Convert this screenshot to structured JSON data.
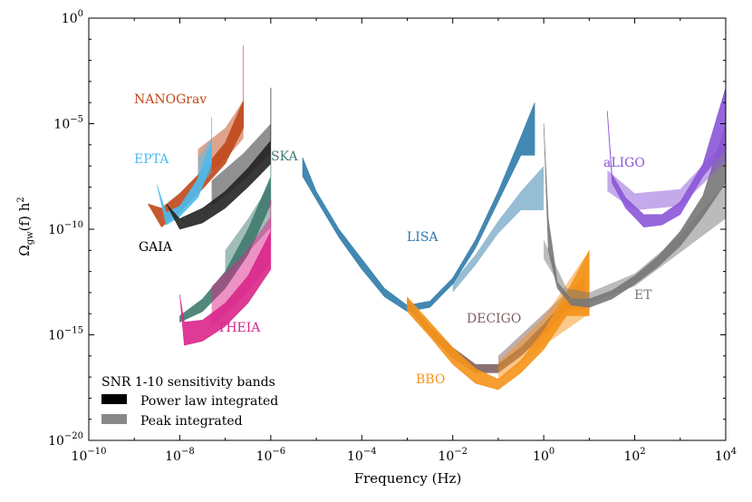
{
  "chart_data": {
    "type": "area",
    "title": "",
    "xlabel": "Frequency (Hz)",
    "ylabel": "Ω_gw(f) h²",
    "ylabel_parts": {
      "omega": "Ω",
      "sub": "gw",
      "mid": "(f) h",
      "sup": "2"
    },
    "xscale": "log",
    "yscale": "log",
    "xlim_exp": [
      -10,
      4
    ],
    "ylim_exp": [
      -20,
      0
    ],
    "xticks": [
      {
        "base": "10",
        "exp": "−10",
        "v": -10
      },
      {
        "base": "10",
        "exp": "−8",
        "v": -8
      },
      {
        "base": "10",
        "exp": "−6",
        "v": -6
      },
      {
        "base": "10",
        "exp": "−4",
        "v": -4
      },
      {
        "base": "10",
        "exp": "−2",
        "v": -2
      },
      {
        "base": "10",
        "exp": "0",
        "v": 0
      },
      {
        "base": "10",
        "exp": "2",
        "v": 2
      },
      {
        "base": "10",
        "exp": "4",
        "v": 4
      }
    ],
    "yticks": [
      {
        "base": "10",
        "exp": "0",
        "v": 0
      },
      {
        "base": "10",
        "exp": "−5",
        "v": -5
      },
      {
        "base": "10",
        "exp": "−10",
        "v": -10
      },
      {
        "base": "10",
        "exp": "−15",
        "v": -15
      },
      {
        "base": "10",
        "exp": "−20",
        "v": -20
      }
    ],
    "legend": {
      "title": "SNR 1-10 sensitivity bands",
      "position": "bottom-left",
      "entries": [
        {
          "label": "Power law integrated",
          "color": "#000000"
        },
        {
          "label": "Peak integrated",
          "color": "#888888"
        }
      ]
    },
    "detectors": [
      {
        "name": "NANOGrav",
        "color": "#c0471a",
        "pli": [
          [
            -8.7,
            -8.8,
            -8.8
          ],
          [
            -8.4,
            -9.0,
            -9.9
          ],
          [
            -8.0,
            -8.3,
            -9.2
          ],
          [
            -7.5,
            -7.2,
            -8.1
          ],
          [
            -7.0,
            -5.9,
            -6.9
          ],
          [
            -6.6,
            -3.9,
            -5.2
          ],
          [
            -6.6,
            -1.3,
            -5.2
          ]
        ],
        "peak": [
          [
            -7.6,
            -6.2,
            -7.8
          ],
          [
            -7.0,
            -5.2,
            -6.7
          ],
          [
            -6.6,
            -3.9,
            -5.7
          ]
        ]
      },
      {
        "name": "EPTA",
        "color": "#4dbbee",
        "pli": [
          [
            -8.5,
            -7.9,
            -7.9
          ],
          [
            -8.3,
            -9.2,
            -9.8
          ],
          [
            -8.0,
            -8.9,
            -9.4
          ],
          [
            -7.6,
            -7.6,
            -8.5
          ],
          [
            -7.3,
            -5.8,
            -6.9
          ],
          [
            -7.3,
            -4.7,
            -6.9
          ]
        ],
        "peak": [
          [
            -7.6,
            -6.6,
            -8.1
          ],
          [
            -7.3,
            -5.7,
            -7.3
          ]
        ]
      },
      {
        "name": "GAIA",
        "color": "#222222",
        "pli": [
          [
            -8.3,
            -8.8,
            -8.8
          ],
          [
            -8.0,
            -9.5,
            -10.0
          ],
          [
            -7.5,
            -9.0,
            -9.7
          ],
          [
            -7.0,
            -8.2,
            -9.0
          ],
          [
            -6.5,
            -7.1,
            -8.0
          ],
          [
            -6.0,
            -5.8,
            -6.9
          ],
          [
            -6.0,
            -3.3,
            -6.9
          ]
        ],
        "peak": [
          [
            -7.3,
            -7.7,
            -8.9
          ],
          [
            -6.6,
            -6.4,
            -7.7
          ],
          [
            -6.0,
            -5.0,
            -6.4
          ]
        ]
      },
      {
        "name": "SKA",
        "color": "#3f7b6e",
        "pli": [
          [
            -8.0,
            -14.1,
            -14.4
          ],
          [
            -7.5,
            -13.3,
            -13.9
          ],
          [
            -7.0,
            -12.0,
            -12.8
          ],
          [
            -6.5,
            -10.0,
            -11.2
          ],
          [
            -6.0,
            -7.5,
            -8.8
          ],
          [
            -6.0,
            -6.9,
            -8.8
          ]
        ],
        "peak": [
          [
            -7.0,
            -11.0,
            -12.6
          ],
          [
            -6.5,
            -9.5,
            -11.1
          ],
          [
            -6.0,
            -7.8,
            -9.9
          ]
        ]
      },
      {
        "name": "THEIA",
        "color": "#d9268a",
        "pli": [
          [
            -8.0,
            -13.1,
            -13.1
          ],
          [
            -7.9,
            -14.4,
            -15.5
          ],
          [
            -7.5,
            -14.3,
            -15.3
          ],
          [
            -7.0,
            -13.5,
            -14.6
          ],
          [
            -6.5,
            -12.2,
            -13.5
          ],
          [
            -6.0,
            -10.1,
            -11.9
          ],
          [
            -6.0,
            -8.6,
            -11.9
          ]
        ],
        "peak": [
          [
            -7.3,
            -12.7,
            -14.6
          ],
          [
            -6.6,
            -11.2,
            -13.2
          ],
          [
            -6.0,
            -9.4,
            -11.6
          ]
        ]
      },
      {
        "name": "LISA",
        "color": "#2f7baa",
        "pli": [
          [
            -5.3,
            -6.6,
            -7.5
          ],
          [
            -5.0,
            -8.2,
            -8.6
          ],
          [
            -4.5,
            -10.0,
            -10.4
          ],
          [
            -4.0,
            -11.4,
            -11.9
          ],
          [
            -3.5,
            -12.8,
            -13.2
          ],
          [
            -3.0,
            -13.6,
            -13.9
          ],
          [
            -2.5,
            -13.4,
            -13.7
          ],
          [
            -2.0,
            -12.3,
            -12.6
          ],
          [
            -1.5,
            -10.5,
            -10.9
          ],
          [
            -1.0,
            -8.2,
            -8.7
          ],
          [
            -0.5,
            -5.6,
            -6.5
          ],
          [
            -0.2,
            -4.0,
            -6.5
          ]
        ],
        "peak": [
          [
            -2.0,
            -12.5,
            -13.0
          ],
          [
            -1.5,
            -11.2,
            -11.7
          ],
          [
            -1.0,
            -9.6,
            -10.2
          ],
          [
            -0.5,
            -8.2,
            -9.1
          ],
          [
            0.0,
            -7.0,
            -9.1
          ]
        ]
      },
      {
        "name": "DECIGO",
        "color": "#7d6062",
        "pli": [
          [
            -3.0,
            -13.3,
            -13.7
          ],
          [
            -2.5,
            -14.6,
            -15.0
          ],
          [
            -2.0,
            -15.6,
            -16.1
          ],
          [
            -1.5,
            -16.4,
            -16.8
          ],
          [
            -1.0,
            -16.4,
            -16.8
          ],
          [
            -0.5,
            -15.6,
            -16.0
          ],
          [
            0.0,
            -14.5,
            -15.0
          ],
          [
            0.5,
            -13.3,
            -13.8
          ],
          [
            0.9,
            -12.2,
            -13.8
          ]
        ],
        "peak": [
          [
            -1.0,
            -16.0,
            -16.6
          ],
          [
            0.0,
            -14.0,
            -15.0
          ],
          [
            0.8,
            -12.4,
            -13.6
          ]
        ]
      },
      {
        "name": "BBO",
        "color": "#f59318",
        "pli": [
          [
            -3.0,
            -13.2,
            -13.9
          ],
          [
            -2.5,
            -14.4,
            -15.1
          ],
          [
            -2.0,
            -15.6,
            -16.4
          ],
          [
            -1.5,
            -16.6,
            -17.3
          ],
          [
            -1.0,
            -17.1,
            -17.6
          ],
          [
            -0.5,
            -16.2,
            -16.8
          ],
          [
            0.0,
            -14.8,
            -15.7
          ],
          [
            0.5,
            -13.0,
            -14.1
          ],
          [
            1.0,
            -11.0,
            -14.1
          ]
        ],
        "peak": [
          [
            -1.0,
            -16.3,
            -17.2
          ],
          [
            0.0,
            -14.2,
            -15.5
          ],
          [
            1.0,
            -11.0,
            -14.0
          ]
        ]
      },
      {
        "name": "ET",
        "color": "#777777",
        "pli": [
          [
            0.0,
            -5.0,
            -5.0
          ],
          [
            0.1,
            -9.5,
            -11.0
          ],
          [
            0.3,
            -12.5,
            -12.8
          ],
          [
            0.6,
            -13.3,
            -13.6
          ],
          [
            1.0,
            -13.3,
            -13.7
          ],
          [
            1.5,
            -12.9,
            -13.3
          ],
          [
            2.0,
            -12.2,
            -12.6
          ],
          [
            2.5,
            -11.3,
            -11.8
          ],
          [
            3.0,
            -10.1,
            -10.8
          ],
          [
            3.5,
            -8.4,
            -9.4
          ],
          [
            4.0,
            -5.0,
            -7.8
          ]
        ],
        "peak": [
          [
            0.0,
            -10.5,
            -11.4
          ],
          [
            0.5,
            -12.8,
            -13.2
          ],
          [
            1.0,
            -13.0,
            -13.5
          ],
          [
            2.0,
            -12.1,
            -12.7
          ],
          [
            3.0,
            -10.3,
            -11.1
          ],
          [
            4.0,
            -7.8,
            -9.5
          ]
        ]
      },
      {
        "name": "aLIGO",
        "color": "#8b55d8",
        "pli": [
          [
            1.4,
            -4.4,
            -4.6
          ],
          [
            1.5,
            -7.4,
            -7.8
          ],
          [
            1.8,
            -8.5,
            -9.0
          ],
          [
            2.2,
            -9.3,
            -9.9
          ],
          [
            2.6,
            -9.3,
            -9.8
          ],
          [
            3.0,
            -8.7,
            -9.3
          ],
          [
            3.5,
            -6.9,
            -7.5
          ],
          [
            4.0,
            -3.3,
            -6.2
          ]
        ],
        "peak": [
          [
            1.4,
            -7.2,
            -8.2
          ],
          [
            2.0,
            -8.3,
            -9.1
          ],
          [
            3.0,
            -8.1,
            -8.9
          ],
          [
            4.0,
            -5.8,
            -6.8
          ]
        ]
      }
    ]
  }
}
